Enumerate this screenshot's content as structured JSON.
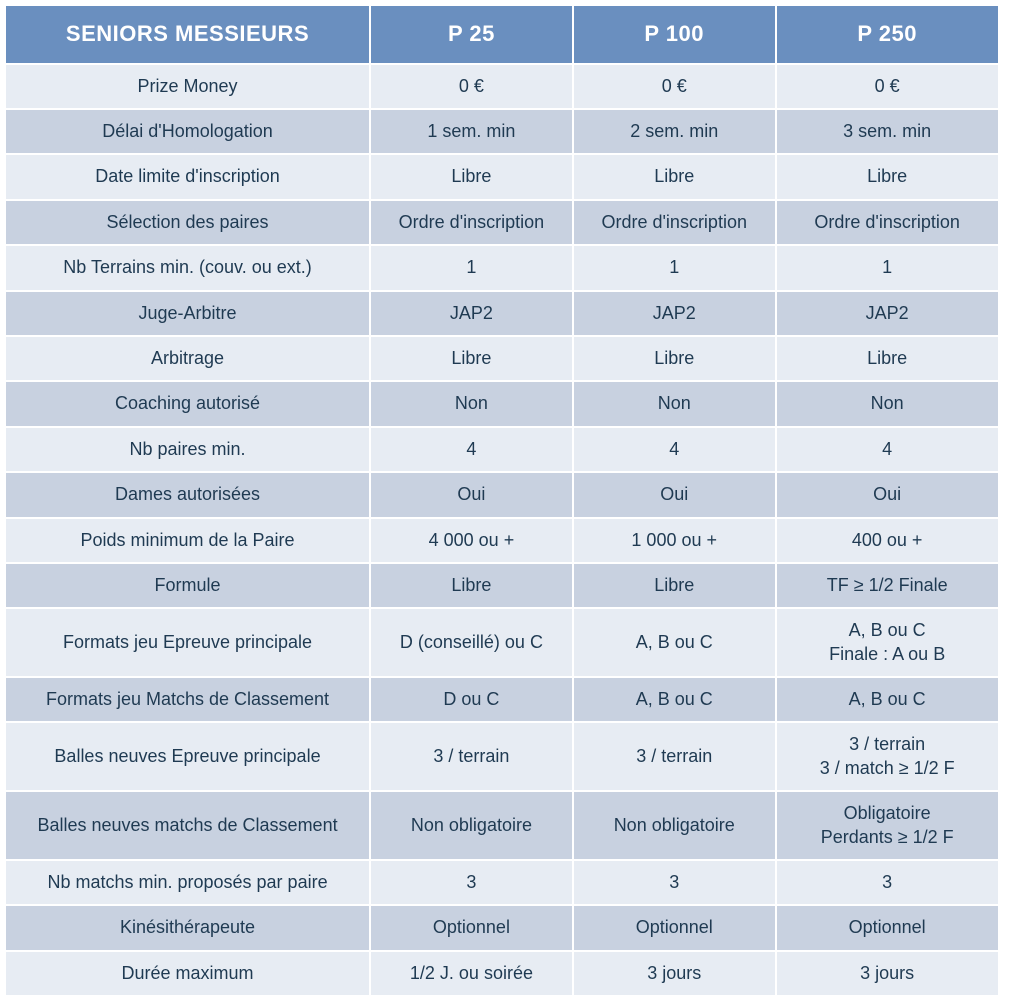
{
  "table": {
    "header_bg": "#6a8fbf",
    "header_fg": "#ffffff",
    "odd_row_bg": "#e7ecf3",
    "even_row_bg": "#c8d1e0",
    "border_color": "#ffffff",
    "text_color": "#1f3a52",
    "title": "SENIORS MESSIEURS",
    "columns": [
      "P 25",
      "P 100",
      "P 250"
    ],
    "rows": [
      {
        "label": "Prize Money",
        "cells": [
          "0  €",
          "0 €",
          "0 €"
        ]
      },
      {
        "label": "Délai d'Homologation",
        "cells": [
          "1 sem. min",
          "2 sem. min",
          "3 sem. min"
        ]
      },
      {
        "label": "Date limite d'inscription",
        "cells": [
          "Libre",
          "Libre",
          "Libre"
        ]
      },
      {
        "label": "Sélection des paires",
        "cells": [
          "Ordre d'inscription",
          "Ordre d'inscription",
          "Ordre d'inscription"
        ]
      },
      {
        "label": "Nb Terrains min. (couv. ou ext.)",
        "cells": [
          "1",
          "1",
          "1"
        ]
      },
      {
        "label": "Juge-Arbitre",
        "cells": [
          "JAP2",
          "JAP2",
          "JAP2"
        ]
      },
      {
        "label": "Arbitrage",
        "cells": [
          "Libre",
          "Libre",
          "Libre"
        ]
      },
      {
        "label": "Coaching autorisé",
        "cells": [
          "Non",
          "Non",
          "Non"
        ]
      },
      {
        "label": "Nb paires min.",
        "cells": [
          "4",
          "4",
          "4"
        ]
      },
      {
        "label": "Dames autorisées",
        "cells": [
          "Oui",
          "Oui",
          "Oui"
        ]
      },
      {
        "label": "Poids minimum de la Paire",
        "cells": [
          "4 000 ou +",
          "1 000 ou +",
          "400 ou +"
        ]
      },
      {
        "label": "Formule",
        "cells": [
          "Libre",
          "Libre",
          "TF ≥ 1/2 Finale"
        ]
      },
      {
        "label": "Formats jeu Epreuve principale",
        "cells": [
          "D (conseillé) ou C",
          "A, B ou C",
          "A, B ou C\nFinale : A ou B"
        ]
      },
      {
        "label": "Formats jeu Matchs de Classement",
        "cells": [
          "D ou C",
          "A, B ou C",
          "A, B ou C"
        ]
      },
      {
        "label": "Balles neuves Epreuve principale",
        "cells": [
          "3 / terrain",
          "3 / terrain",
          "3 / terrain\n3 / match ≥ 1/2  F"
        ]
      },
      {
        "label": "Balles neuves matchs de Classement",
        "cells": [
          "Non obligatoire",
          "Non obligatoire",
          "Obligatoire\nPerdants  ≥ 1/2 F"
        ]
      },
      {
        "label": "Nb matchs min. proposés par paire",
        "cells": [
          "3",
          "3",
          "3"
        ]
      },
      {
        "label": "Kinésithérapeute",
        "cells": [
          "Optionnel",
          "Optionnel",
          "Optionnel"
        ]
      },
      {
        "label": "Durée maximum",
        "cells": [
          "1/2 J. ou soirée",
          "3 jours",
          "3 jours"
        ]
      }
    ]
  }
}
